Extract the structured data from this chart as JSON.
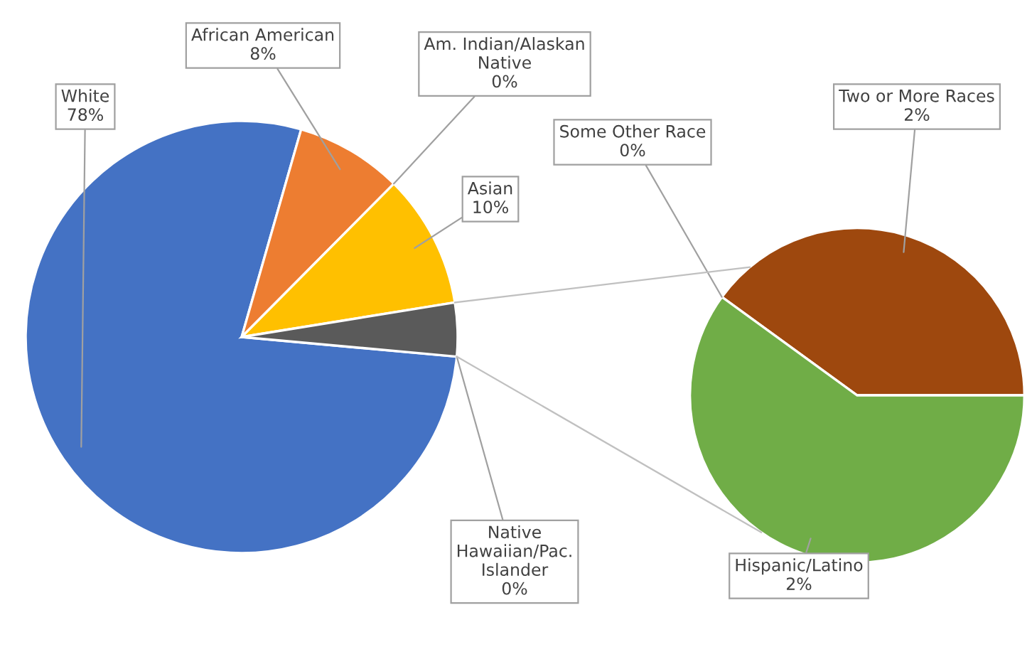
{
  "chart_data": [
    {
      "type": "pie",
      "categories": [
        "White",
        "African American",
        "Am. Indian/Alaskan\nNative",
        "Asian",
        null,
        "Native\nHawaiian/Pac.\nIslander"
      ],
      "values": [
        78,
        8,
        0,
        10,
        4,
        0
      ],
      "colors": [
        "#4472c4",
        "#ed7d31",
        "#7f7f7f",
        "#ffc000",
        "#5a5a5a",
        "#5a5a5a"
      ],
      "value_labels": [
        "78%",
        "8%",
        "0%",
        "10%",
        null,
        "0%"
      ]
    },
    {
      "type": "pie",
      "categories": [
        "Some Other Race",
        "Two or More Races",
        "Hispanic/Latino"
      ],
      "values": [
        0,
        1.6,
        2.4
      ],
      "colors": [
        "#264478",
        "#9e480e",
        "#70ad47"
      ],
      "value_labels": [
        "0%",
        "2%",
        "2%"
      ]
    }
  ]
}
